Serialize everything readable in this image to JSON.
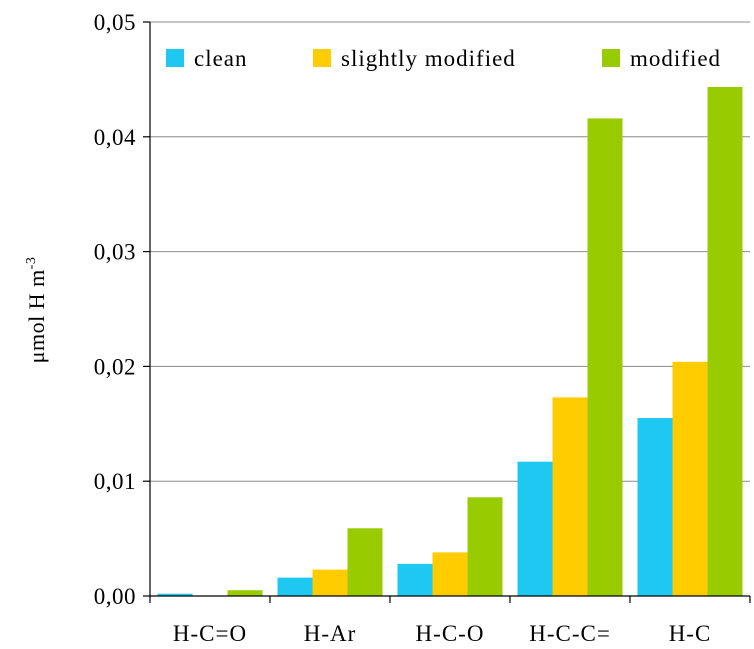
{
  "chart_data": {
    "type": "bar",
    "title": "",
    "xlabel": "",
    "ylabel": {
      "base": "μmol H m",
      "superscript": "-3"
    },
    "ylim": [
      0,
      0.05
    ],
    "y_ticks": [
      "0,00",
      "0,01",
      "0,02",
      "0,03",
      "0,04",
      "0,05"
    ],
    "grid": true,
    "legend_position": "top",
    "categories": [
      "H-C=O",
      "H-Ar",
      "H-C-O",
      "H-C-C=",
      "H-C"
    ],
    "series": [
      {
        "name": "clean",
        "color": "#1ec8f0",
        "values": [
          0.0002,
          0.0016,
          0.0028,
          0.0117,
          0.0155
        ]
      },
      {
        "name": "slightly modified",
        "color": "#ffcc00",
        "values": [
          0.0,
          0.0023,
          0.0038,
          0.0173,
          0.0204
        ]
      },
      {
        "name": "modified",
        "color": "#99cc00",
        "values": [
          0.0005,
          0.0059,
          0.0086,
          0.0416,
          0.0447
        ]
      }
    ]
  }
}
